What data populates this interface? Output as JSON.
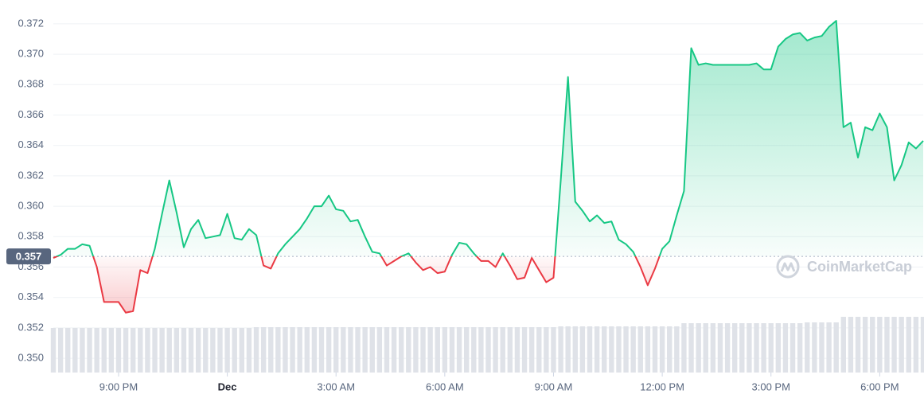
{
  "chart_data": {
    "type": "line",
    "watermark": "CoinMarketCap",
    "baseline": {
      "value": 0.3567,
      "label": "0.357"
    },
    "xlim": [
      19.2,
      43.2
    ],
    "xticks": [
      {
        "value": 21,
        "label": "9:00 PM"
      },
      {
        "value": 24,
        "label": "Dec"
      },
      {
        "value": 27,
        "label": "3:00 AM"
      },
      {
        "value": 30,
        "label": "6:00 AM"
      },
      {
        "value": 33,
        "label": "9:00 AM"
      },
      {
        "value": 36,
        "label": "12:00 PM"
      },
      {
        "value": 39,
        "label": "3:00 PM"
      },
      {
        "value": 42,
        "label": "6:00 PM"
      }
    ],
    "ylim": [
      0.3488,
      0.3732
    ],
    "yticks": [
      {
        "value": 0.35,
        "label": "0.350"
      },
      0.352,
      0.354,
      0.356,
      0.358,
      {
        "value": 0.36,
        "label": "0.360"
      },
      0.362,
      0.364,
      0.366,
      0.368,
      {
        "value": 0.37,
        "label": "0.370"
      },
      0.372
    ],
    "grid": true,
    "up_color": "#16c784",
    "down_color": "#ea3943",
    "volume_color": "#dfe2e8",
    "volume_ylim": [
      0,
      100
    ],
    "x": [
      19.2,
      19.4,
      19.6,
      19.8,
      20.0,
      20.2,
      20.4,
      20.6,
      20.8,
      21.0,
      21.2,
      21.4,
      21.6,
      21.8,
      22.0,
      22.2,
      22.4,
      22.6,
      22.8,
      23.0,
      23.2,
      23.4,
      23.6,
      23.8,
      24.0,
      24.2,
      24.4,
      24.6,
      24.8,
      25.0,
      25.2,
      25.4,
      25.6,
      25.8,
      26.0,
      26.2,
      26.4,
      26.6,
      26.8,
      27.0,
      27.2,
      27.4,
      27.6,
      27.8,
      28.0,
      28.2,
      28.4,
      28.6,
      28.8,
      29.0,
      29.2,
      29.4,
      29.6,
      29.8,
      30.0,
      30.2,
      30.4,
      30.6,
      30.8,
      31.0,
      31.2,
      31.4,
      31.6,
      31.8,
      32.0,
      32.2,
      32.4,
      32.6,
      32.8,
      33.0,
      33.2,
      33.4,
      33.6,
      33.8,
      34.0,
      34.2,
      34.4,
      34.6,
      34.8,
      35.0,
      35.2,
      35.4,
      35.6,
      35.8,
      36.0,
      36.2,
      36.4,
      36.6,
      36.8,
      37.0,
      37.2,
      37.4,
      37.6,
      37.8,
      38.0,
      38.2,
      38.4,
      38.6,
      38.8,
      39.0,
      39.2,
      39.4,
      39.6,
      39.8,
      40.0,
      40.2,
      40.4,
      40.6,
      40.8,
      41.0,
      41.2,
      41.4,
      41.6,
      41.8,
      42.0,
      42.2,
      42.4,
      42.6,
      42.8,
      43.0,
      43.2
    ],
    "values": [
      0.3566,
      0.3568,
      0.3572,
      0.3572,
      0.3575,
      0.3574,
      0.356,
      0.3537,
      0.3537,
      0.3537,
      0.353,
      0.3531,
      0.3558,
      0.3556,
      0.3572,
      0.3595,
      0.3617,
      0.3596,
      0.3573,
      0.3585,
      0.3591,
      0.3579,
      0.358,
      0.3581,
      0.3595,
      0.3579,
      0.3578,
      0.3585,
      0.3581,
      0.3561,
      0.3559,
      0.3569,
      0.3575,
      0.358,
      0.3585,
      0.3592,
      0.36,
      0.36,
      0.3607,
      0.3598,
      0.3597,
      0.359,
      0.3591,
      0.358,
      0.357,
      0.3569,
      0.3561,
      0.3564,
      0.3567,
      0.3569,
      0.3563,
      0.3558,
      0.356,
      0.3556,
      0.3557,
      0.3568,
      0.3576,
      0.3575,
      0.3569,
      0.3564,
      0.3564,
      0.356,
      0.3569,
      0.3561,
      0.3552,
      0.3553,
      0.3566,
      0.3558,
      0.355,
      0.3553,
      0.3617,
      0.3685,
      0.3603,
      0.3597,
      0.359,
      0.3594,
      0.3589,
      0.359,
      0.3578,
      0.3575,
      0.357,
      0.356,
      0.3548,
      0.3559,
      0.3572,
      0.3577,
      0.3594,
      0.361,
      0.3704,
      0.3693,
      0.3694,
      0.3693,
      0.3693,
      0.3693,
      0.3693,
      0.3693,
      0.3693,
      0.3694,
      0.369,
      0.369,
      0.3705,
      0.371,
      0.3713,
      0.3714,
      0.3709,
      0.3711,
      0.3712,
      0.3718,
      0.3722,
      0.3652,
      0.3655,
      0.3632,
      0.3652,
      0.365,
      0.3661,
      0.3652,
      0.3617,
      0.3627,
      0.3642,
      0.3638,
      0.3643
    ],
    "volume": [
      56,
      56,
      56,
      56,
      56,
      56,
      56,
      56,
      56,
      56,
      56,
      56,
      56,
      56,
      56,
      56,
      56,
      56,
      56,
      56,
      56,
      56,
      56,
      56,
      56,
      56,
      56,
      56,
      57,
      57,
      57,
      57,
      57,
      57,
      57,
      57,
      57,
      57,
      57,
      57,
      57,
      57,
      57,
      57,
      57,
      57,
      57,
      57,
      57,
      57,
      57,
      57,
      57,
      57,
      57,
      57,
      57,
      57,
      57,
      57,
      57,
      57,
      57,
      57,
      57,
      57,
      57,
      57,
      57,
      57,
      58,
      58,
      58,
      58,
      58,
      58,
      58,
      58,
      58,
      58,
      58,
      58,
      58,
      58,
      58,
      58,
      58,
      62,
      62,
      62,
      62,
      62,
      62,
      62,
      62,
      62,
      62,
      62,
      62,
      62,
      62,
      62,
      62,
      62,
      63,
      63,
      63,
      63,
      63,
      70,
      70,
      70,
      70,
      70,
      70,
      70,
      70,
      70,
      70,
      70,
      70
    ]
  }
}
